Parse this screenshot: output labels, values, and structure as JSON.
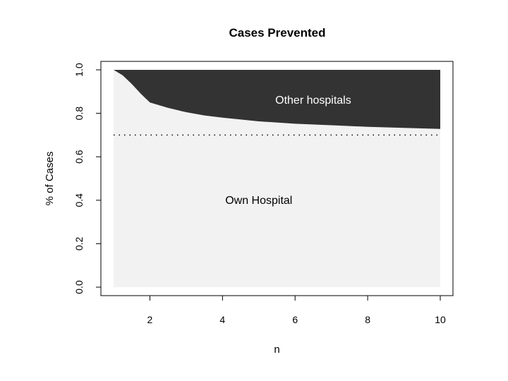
{
  "chart_data": {
    "type": "area",
    "title": "Cases Prevented",
    "xlabel": "n",
    "ylabel": "% of Cases",
    "xlim": [
      1,
      10
    ],
    "ylim": [
      0,
      1
    ],
    "x_ticks": [
      2,
      4,
      6,
      8,
      10
    ],
    "y_ticks": [
      "0.0",
      "0.2",
      "0.4",
      "0.6",
      "0.8",
      "1.0"
    ],
    "x": [
      1,
      1.25,
      1.5,
      1.75,
      2,
      2.5,
      3,
      3.5,
      4,
      5,
      6,
      7,
      8,
      9,
      10
    ],
    "series": [
      {
        "name": "Own Hospital",
        "color": "#f2f2f2",
        "values": [
          1.0,
          0.975,
          0.935,
          0.89,
          0.85,
          0.825,
          0.805,
          0.79,
          0.78,
          0.763,
          0.752,
          0.745,
          0.738,
          0.733,
          0.728
        ]
      },
      {
        "name": "Other hospitals",
        "color": "#333333",
        "values": [
          0.0,
          0.025,
          0.065,
          0.11,
          0.15,
          0.175,
          0.195,
          0.21,
          0.22,
          0.237,
          0.248,
          0.255,
          0.262,
          0.267,
          0.272
        ]
      }
    ],
    "reference_line": {
      "y": 0.7,
      "style": "dotted"
    },
    "annotations": [
      {
        "text": "Other hospitals",
        "x": 6.5,
        "y": 0.86,
        "color": "#ffffff"
      },
      {
        "text": "Own Hospital",
        "x": 5.0,
        "y": 0.4,
        "color": "#000000"
      }
    ],
    "grid": false,
    "legend": "none"
  }
}
